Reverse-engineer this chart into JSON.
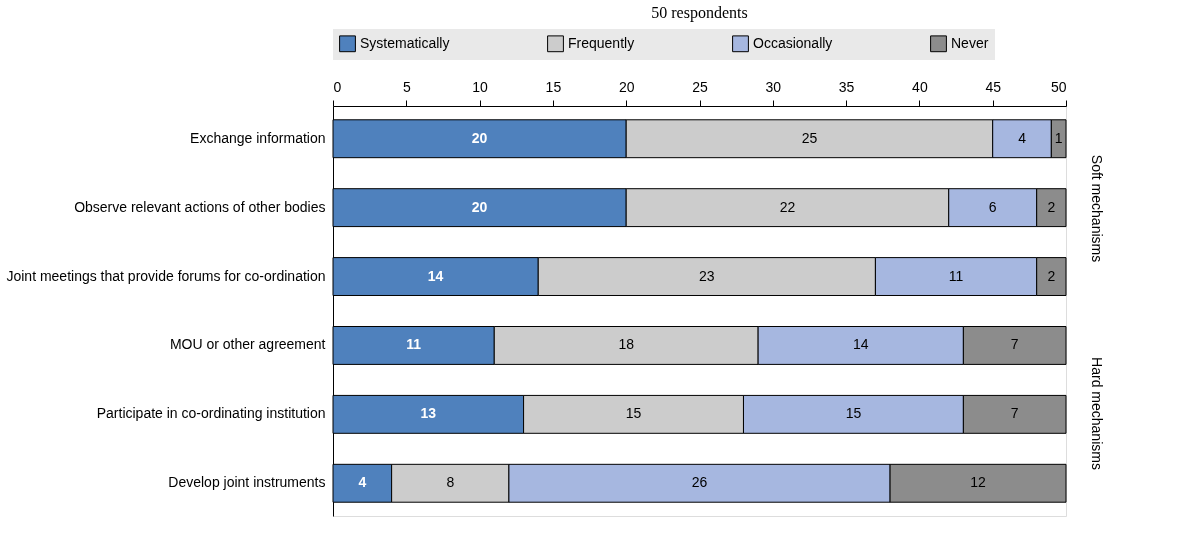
{
  "chart_data": {
    "type": "bar",
    "orientation": "horizontal",
    "stacked": true,
    "title": "50 respondents",
    "categories": [
      "Exchange information",
      "Observe relevant actions of other bodies",
      "Joint meetings that provide forums for co-ordination",
      "MOU or other agreement",
      "Participate in co-ordinating institution",
      "Develop joint instruments"
    ],
    "series": [
      {
        "name": "Systematically",
        "color": "#4f81bd",
        "values": [
          20,
          20,
          14,
          11,
          13,
          4
        ]
      },
      {
        "name": "Frequently",
        "color": "#cccccc",
        "values": [
          25,
          22,
          23,
          18,
          15,
          8
        ]
      },
      {
        "name": "Occasionally",
        "color": "#a6b7e0",
        "values": [
          4,
          6,
          11,
          14,
          15,
          26
        ]
      },
      {
        "name": "Never",
        "color": "#8c8c8c",
        "values": [
          1,
          2,
          2,
          7,
          7,
          12
        ]
      }
    ],
    "xlim": [
      0,
      50
    ],
    "xticks": [
      0,
      5,
      10,
      15,
      20,
      25,
      30,
      35,
      40,
      45,
      50
    ],
    "data_labels": true,
    "legend": "top",
    "grid": false,
    "annotations": [
      "Soft mechanisms",
      "Hard mechanisms"
    ]
  }
}
